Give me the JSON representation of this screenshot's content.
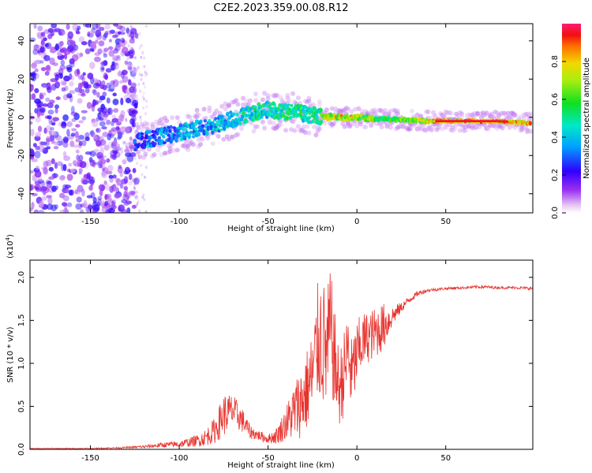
{
  "chart_data": [
    {
      "type": "heatmap",
      "title": "C2E2.2023.359.00.08.R12",
      "xlabel": "Height of straight line (km)",
      "ylabel": "Frequency (Hz)",
      "xlim": [
        -184,
        99
      ],
      "ylim": [
        -50,
        49
      ],
      "xticks": [
        -150,
        -100,
        -50,
        0,
        50
      ],
      "yticks": [
        -40,
        -20,
        0,
        20,
        40
      ],
      "xtick_labels": [
        "-150",
        "-100",
        "-50",
        "0",
        "50"
      ],
      "ytick_labels": [
        "-40",
        "-20",
        "0",
        "20",
        "40"
      ],
      "colorbar": {
        "label": "Normalized spectral amplitude",
        "range": [
          0.0,
          1.0
        ],
        "ticks": [
          0.0,
          0.2,
          0.4,
          0.6,
          0.8
        ],
        "tick_labels": [
          "0.0",
          "0.2",
          "0.4",
          "0.6",
          "0.8"
        ]
      },
      "ridge": {
        "x": [
          -125,
          -110,
          -100,
          -90,
          -80,
          -70,
          -60,
          -50,
          -40,
          -30,
          -20,
          -10,
          0,
          10,
          20,
          40,
          60,
          80,
          95
        ],
        "freq": [
          -13,
          -10,
          -8,
          -6,
          -4,
          -1,
          2,
          4,
          3,
          2,
          0,
          0,
          0,
          -1,
          -1,
          -2,
          -2,
          -2,
          -3
        ]
      }
    },
    {
      "type": "line",
      "title": "",
      "xlabel": "Height of straight line (km)",
      "ylabel": "SNR (10 * v/v)",
      "y_multiplier_label": "(x10",
      "y_multiplier_exp": "4",
      "y_multiplier_close": ")",
      "xlim": [
        -184,
        99
      ],
      "ylim": [
        0,
        2.2
      ],
      "xticks": [
        -150,
        -100,
        -50,
        0,
        50
      ],
      "yticks": [
        0.0,
        0.5,
        1.0,
        1.5,
        2.0
      ],
      "xtick_labels": [
        "-150",
        "-100",
        "-50",
        "0",
        "50"
      ],
      "ytick_labels": [
        "0.0",
        "0.5",
        "1.0",
        "1.5",
        "2.0"
      ],
      "series": [
        {
          "name": "SNR",
          "color": "#e8342f",
          "x": [
            -184,
            -150,
            -130,
            -120,
            -110,
            -100,
            -95,
            -90,
            -85,
            -80,
            -75,
            -70,
            -65,
            -60,
            -55,
            -50,
            -45,
            -40,
            -35,
            -30,
            -25,
            -22,
            -20,
            -17,
            -15,
            -12,
            -10,
            -7,
            -5,
            -3,
            0,
            3,
            6,
            10,
            13,
            16,
            20,
            25,
            30,
            35,
            40,
            50,
            60,
            70,
            80,
            90,
            99
          ],
          "y": [
            0.01,
            0.01,
            0.02,
            0.03,
            0.05,
            0.06,
            0.08,
            0.1,
            0.14,
            0.22,
            0.4,
            0.45,
            0.35,
            0.2,
            0.16,
            0.12,
            0.16,
            0.3,
            0.45,
            0.6,
            0.85,
            1.25,
            1.3,
            1.1,
            1.4,
            0.95,
            0.7,
            0.9,
            1.15,
            0.85,
            1.1,
            1.25,
            1.3,
            1.35,
            1.4,
            1.45,
            1.55,
            1.65,
            1.75,
            1.82,
            1.85,
            1.87,
            1.88,
            1.89,
            1.88,
            1.88,
            1.87
          ],
          "noise": [
            0.005,
            0.005,
            0.01,
            0.02,
            0.03,
            0.04,
            0.05,
            0.07,
            0.1,
            0.15,
            0.25,
            0.2,
            0.15,
            0.08,
            0.06,
            0.05,
            0.1,
            0.2,
            0.35,
            0.45,
            0.55,
            0.7,
            0.8,
            0.7,
            0.75,
            0.55,
            0.45,
            0.5,
            0.55,
            0.45,
            0.4,
            0.35,
            0.3,
            0.3,
            0.3,
            0.25,
            0.12,
            0.06,
            0.04,
            0.03,
            0.02,
            0.015,
            0.015,
            0.02,
            0.015,
            0.015,
            0.02
          ]
        }
      ]
    }
  ]
}
